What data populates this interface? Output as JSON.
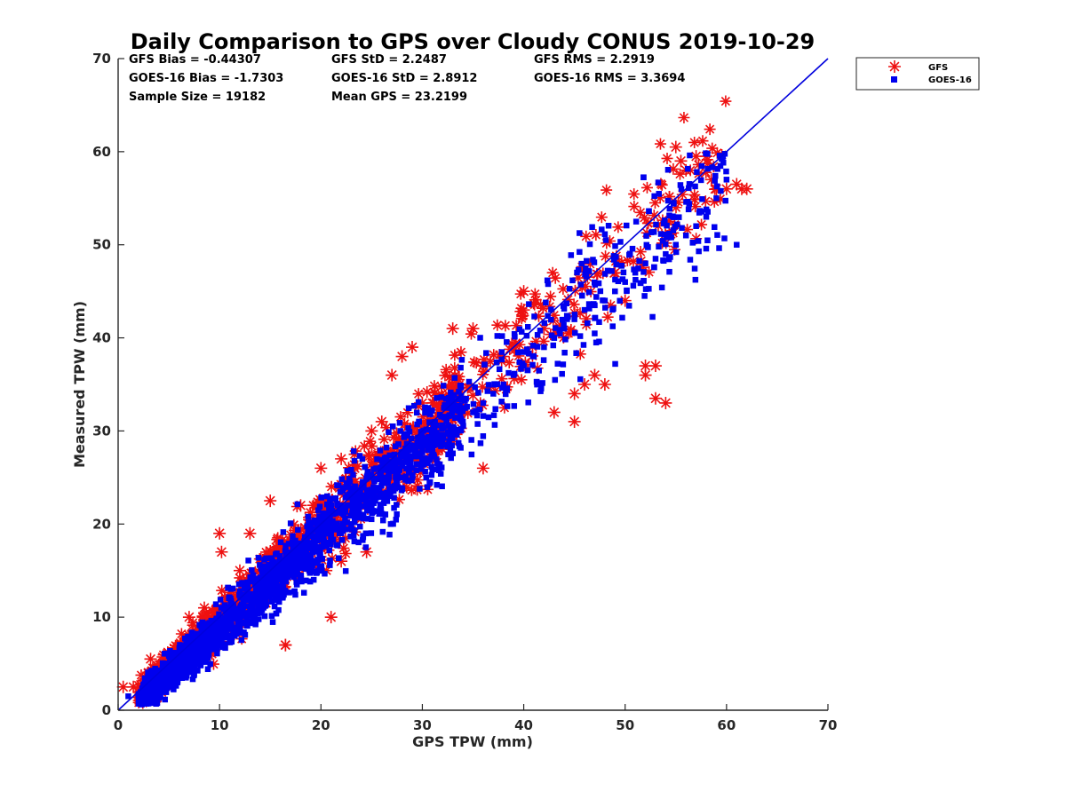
{
  "chart_data": {
    "type": "scatter",
    "title": "Daily Comparison to GPS over Cloudy CONUS 2019-10-29",
    "xlabel": "GPS TPW (mm)",
    "ylabel": "Measured TPW (mm)",
    "xlim": [
      0,
      70
    ],
    "ylim": [
      0,
      70
    ],
    "xticks": [
      0,
      10,
      20,
      30,
      40,
      50,
      60,
      70
    ],
    "yticks": [
      0,
      10,
      20,
      30,
      40,
      50,
      60,
      70
    ],
    "grid": false,
    "legend_position": "outside-top-right",
    "stats": [
      "GFS Bias = -0.44307",
      "GFS StD = 2.2487",
      "GFS RMS = 2.2919",
      "GOES-16 Bias = -1.7303",
      "GOES-16 StD = 2.8912",
      "GOES-16 RMS = 3.3694",
      "Sample Size = 19182",
      "Mean GPS = 23.2199"
    ],
    "reference_line": {
      "x": [
        0,
        70
      ],
      "y": [
        0,
        70
      ],
      "color": "#0000dd"
    },
    "series": [
      {
        "name": "GFS",
        "marker": "asterisk",
        "color": "#ee1111",
        "approx_bias": -0.44,
        "approx_std": 2.25,
        "x": [
          0.5,
          1.5,
          3.2,
          5,
          7,
          8.5,
          10,
          10.2,
          13,
          16.5,
          18,
          20,
          22,
          24.5,
          25,
          26,
          27,
          28,
          29,
          30,
          31,
          33,
          35,
          36,
          38,
          40,
          42,
          43,
          45,
          46,
          47,
          48,
          50,
          52,
          53,
          54,
          55,
          55.5,
          56,
          57,
          58,
          58.5,
          59,
          60,
          61,
          61.5,
          62,
          53,
          52,
          49,
          45,
          40,
          36,
          33,
          31,
          27,
          22,
          21,
          16.5,
          15,
          12
        ],
        "y": [
          2.5,
          2.5,
          5.5,
          6,
          10,
          11,
          19,
          17,
          19,
          7,
          22,
          26,
          27,
          17,
          30,
          31,
          36,
          38,
          39,
          33,
          33,
          41,
          41,
          37,
          38,
          43,
          41,
          32,
          34,
          35,
          36,
          35,
          44,
          36,
          37,
          33,
          60.5,
          59,
          58,
          59.5,
          59.5,
          57,
          56,
          56,
          56.5,
          56,
          56,
          33.5,
          37,
          47,
          31,
          45,
          26,
          35,
          27,
          24,
          16,
          10,
          7,
          22.5,
          15
        ]
      },
      {
        "name": "GOES-16",
        "marker": "square",
        "color": "#0000ee",
        "approx_bias": -1.73,
        "approx_std": 2.89,
        "x": [
          1,
          2,
          3,
          4,
          5,
          6,
          7,
          8,
          9,
          10,
          11,
          12,
          13,
          14,
          15,
          16,
          17,
          18,
          19,
          20,
          21,
          22,
          23,
          24,
          25,
          26,
          27,
          28,
          29,
          30,
          31,
          32,
          33,
          34,
          35,
          36,
          37,
          38,
          39,
          40,
          41,
          42,
          43,
          44,
          45,
          46,
          47,
          48,
          49,
          50,
          51,
          52,
          53,
          54,
          55,
          56,
          57,
          58,
          59,
          60,
          61
        ],
        "y": [
          1.5,
          1.5,
          2,
          2.5,
          3,
          4,
          5,
          6,
          7,
          8,
          9.5,
          10.5,
          11,
          12,
          13,
          14,
          15,
          16,
          16.5,
          17.5,
          18.5,
          19,
          20,
          21,
          22,
          23,
          24,
          25,
          26,
          27,
          28,
          29,
          30,
          31,
          32,
          33,
          34,
          35,
          36,
          37,
          38,
          39,
          40,
          41,
          42,
          43,
          43.5,
          44,
          45,
          46,
          47,
          48,
          48.5,
          49,
          50,
          51,
          52,
          53,
          55,
          57,
          50
        ]
      }
    ]
  }
}
